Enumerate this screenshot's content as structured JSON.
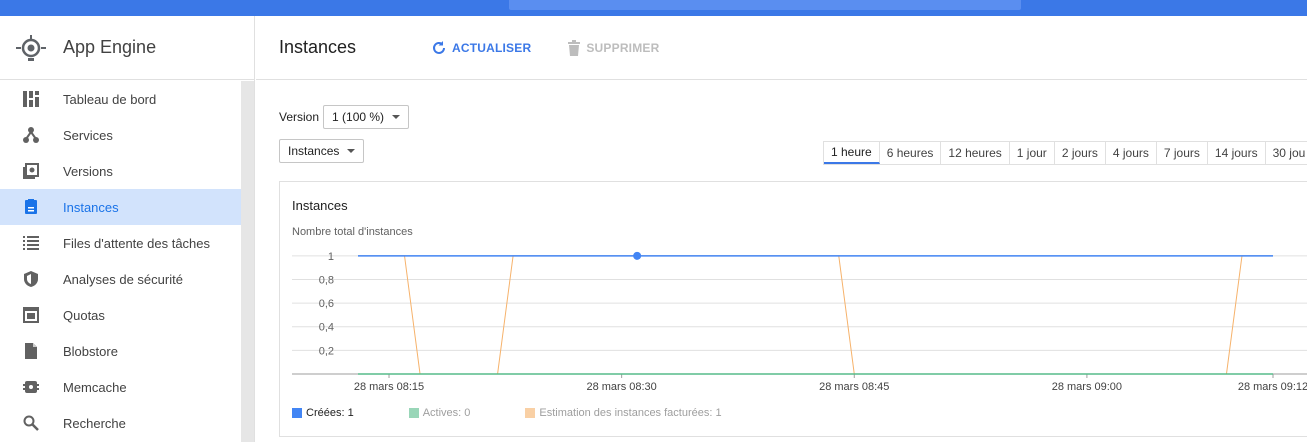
{
  "sidebar": {
    "app_title": "App Engine",
    "items": [
      {
        "label": "Tableau de bord",
        "icon": "dashboard-icon"
      },
      {
        "label": "Services",
        "icon": "services-icon"
      },
      {
        "label": "Versions",
        "icon": "versions-icon"
      },
      {
        "label": "Instances",
        "icon": "instances-icon",
        "active": true
      },
      {
        "label": "Files d'attente des tâches",
        "icon": "list-icon"
      },
      {
        "label": "Analyses de sécurité",
        "icon": "shield-icon"
      },
      {
        "label": "Quotas",
        "icon": "quotas-icon"
      },
      {
        "label": "Blobstore",
        "icon": "file-icon"
      },
      {
        "label": "Memcache",
        "icon": "memcache-icon"
      },
      {
        "label": "Recherche",
        "icon": "search-icon"
      }
    ]
  },
  "toolbar": {
    "page_title": "Instances",
    "refresh_label": "ACTUALISER",
    "delete_label": "SUPPRIMER"
  },
  "filters": {
    "version_label": "Version",
    "version_value": "1 (100 %)",
    "metric_value": "Instances"
  },
  "time_ranges": [
    "1 heure",
    "6 heures",
    "12 heures",
    "1 jour",
    "2 jours",
    "4 jours",
    "7 jours",
    "14 jours",
    "30 jou"
  ],
  "active_range": "1 heure",
  "card": {
    "title": "Instances",
    "subtitle": "Nombre total d'instances"
  },
  "colors": {
    "accent": "#3b78e7",
    "created": "#4285f4",
    "active": "#57bb8a",
    "billed": "#f6b26b"
  },
  "chart_data": {
    "type": "line",
    "ylabel": "Nombre total d'instances",
    "ylim": [
      0,
      1.1
    ],
    "yticks": [
      "0,2",
      "0,4",
      "0,6",
      "0,8",
      "1"
    ],
    "ytick_values": [
      0.2,
      0.4,
      0.6,
      0.8,
      1
    ],
    "xlim_minutes": [
      0,
      59
    ],
    "xticks": [
      {
        "label": "28 mars 08:15",
        "minute": 2
      },
      {
        "label": "28 mars 08:30",
        "minute": 17
      },
      {
        "label": "28 mars 08:45",
        "minute": 32
      },
      {
        "label": "28 mars 09:00",
        "minute": 47
      },
      {
        "label": "28 mars 09:12",
        "minute": 59
      }
    ],
    "x_start_time": "08:13",
    "grid": true,
    "legend": "bottom-left",
    "series": [
      {
        "name": "Créées: 1",
        "color": "#4285f4",
        "points": [
          [
            0,
            1
          ],
          [
            59,
            1
          ]
        ],
        "marker_at": [
          18,
          1
        ]
      },
      {
        "name": "Actives: 0",
        "color": "#57bb8a",
        "points": [
          [
            0,
            0
          ],
          [
            59,
            0
          ]
        ]
      },
      {
        "name": "Estimation des instances facturées: 1",
        "color": "#f6b26b",
        "points": [
          [
            0,
            1
          ],
          [
            3,
            1
          ],
          [
            4,
            0
          ],
          [
            9,
            0
          ],
          [
            10,
            1
          ],
          [
            31,
            1
          ],
          [
            32,
            0
          ],
          [
            56,
            0
          ],
          [
            57,
            1
          ],
          [
            59,
            1
          ]
        ]
      }
    ]
  }
}
